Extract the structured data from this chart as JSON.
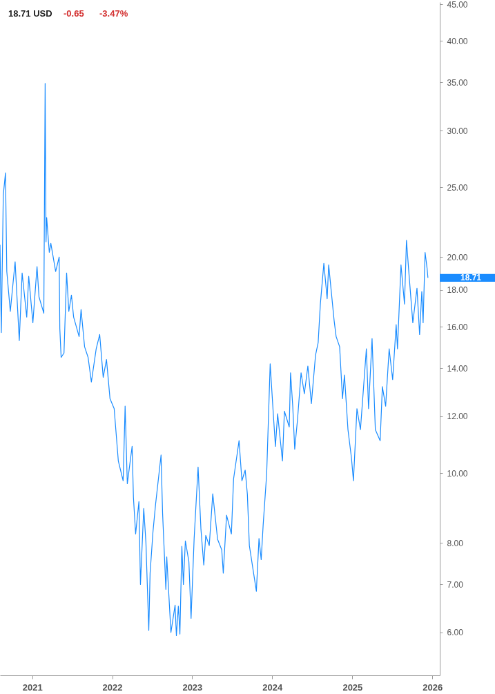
{
  "chart_data": {
    "type": "line",
    "title": "18.71 USD",
    "annotations": [
      "-0.65",
      "-3.47%",
      "18.71"
    ],
    "x": [
      "2020-08-07",
      "2020-08-13",
      "2020-08-22",
      "2020-09-01",
      "2020-09-07",
      "2020-09-23",
      "2020-10-15",
      "2020-11-03",
      "2020-11-16",
      "2020-12-07",
      "2020-12-16",
      "2021-01-04",
      "2021-01-23",
      "2021-02-01",
      "2021-02-23",
      "2021-03-01",
      "2021-03-05",
      "2021-03-08",
      "2021-03-20",
      "2021-03-27",
      "2021-04-18",
      "2021-05-04",
      "2021-05-07",
      "2021-05-13",
      "2021-05-26",
      "2021-06-07",
      "2021-06-17",
      "2021-06-29",
      "2021-07-09",
      "2021-08-03",
      "2021-08-12",
      "2021-08-28",
      "2021-09-13",
      "2021-09-28",
      "2021-10-20",
      "2021-11-05",
      "2021-11-21",
      "2021-12-06",
      "2021-12-22",
      "2022-01-10",
      "2022-01-29",
      "2022-02-20",
      "2022-03-01",
      "2022-03-11",
      "2022-04-02",
      "2022-04-08",
      "2022-04-18",
      "2022-05-03",
      "2022-05-10",
      "2022-05-25",
      "2022-06-04",
      "2022-06-17",
      "2022-06-23",
      "2022-07-06",
      "2022-07-18",
      "2022-08-12",
      "2022-08-19",
      "2022-09-03",
      "2022-09-07",
      "2022-09-26",
      "2022-10-15",
      "2022-10-21",
      "2022-10-30",
      "2022-11-06",
      "2022-11-15",
      "2022-11-22",
      "2022-12-01",
      "2022-12-17",
      "2022-12-27",
      "2023-01-10",
      "2023-01-28",
      "2023-02-10",
      "2023-02-23",
      "2023-03-04",
      "2023-03-20",
      "2023-04-05",
      "2023-04-27",
      "2023-05-16",
      "2023-05-23",
      "2023-06-07",
      "2023-06-29",
      "2023-07-09",
      "2023-08-03",
      "2023-08-16",
      "2023-08-31",
      "2023-09-10",
      "2023-09-19",
      "2023-10-05",
      "2023-10-21",
      "2023-11-02",
      "2023-11-12",
      "2023-11-21",
      "2023-12-07",
      "2023-12-23",
      "2024-01-07",
      "2024-01-16",
      "2024-01-26",
      "2024-02-17",
      "2024-02-26",
      "2024-03-19",
      "2024-03-25",
      "2024-04-04",
      "2024-04-13",
      "2024-04-26",
      "2024-05-12",
      "2024-05-27",
      "2024-06-12",
      "2024-06-28",
      "2024-07-17",
      "2024-07-29",
      "2024-08-08",
      "2024-08-24",
      "2024-09-08",
      "2024-09-15",
      "2024-10-10",
      "2024-10-19",
      "2024-11-04",
      "2024-11-17",
      "2024-11-26",
      "2024-12-12",
      "2024-12-28",
      "2025-01-06",
      "2025-01-22",
      "2025-02-07",
      "2025-03-06",
      "2025-03-16",
      "2025-04-01",
      "2025-04-16",
      "2025-05-08",
      "2025-05-18",
      "2025-06-02",
      "2025-06-18",
      "2025-07-04",
      "2025-07-20",
      "2025-07-26",
      "2025-08-11",
      "2025-08-27",
      "2025-09-05",
      "2025-09-15",
      "2025-10-04",
      "2025-10-23",
      "2025-11-04",
      "2025-11-14",
      "2025-11-20",
      "2025-11-29",
      "2025-12-08",
      "2025-12-12"
    ],
    "series": [
      {
        "color": "#1a8cff",
        "values": [
          20.8,
          15.7,
          24.4,
          26.2,
          19.1,
          16.8,
          19.7,
          15.3,
          19.0,
          16.5,
          18.8,
          16.2,
          19.4,
          17.6,
          16.7,
          34.9,
          21.0,
          22.7,
          20.3,
          20.9,
          19.1,
          20.0,
          15.9,
          14.5,
          14.7,
          19.0,
          16.8,
          17.7,
          16.5,
          15.5,
          16.9,
          15.0,
          14.5,
          13.4,
          14.9,
          15.6,
          13.6,
          14.4,
          12.7,
          12.3,
          10.4,
          9.76,
          12.4,
          9.67,
          10.9,
          9.25,
          8.23,
          9.13,
          7.0,
          8.93,
          8.0,
          6.04,
          7.26,
          8.28,
          9.05,
          10.6,
          8.8,
          6.89,
          7.65,
          6.0,
          6.55,
          5.94,
          6.53,
          5.97,
          7.91,
          7.0,
          8.05,
          7.53,
          6.28,
          8.11,
          10.2,
          8.36,
          7.45,
          8.19,
          7.93,
          9.36,
          8.09,
          7.82,
          7.26,
          8.74,
          8.23,
          9.82,
          11.1,
          9.76,
          10.1,
          9.34,
          7.93,
          7.37,
          6.85,
          8.11,
          7.58,
          8.47,
          9.98,
          14.2,
          12.0,
          10.9,
          12.1,
          10.4,
          12.2,
          11.6,
          13.8,
          12.4,
          10.8,
          11.9,
          13.8,
          12.9,
          14.1,
          12.5,
          14.6,
          15.2,
          17.2,
          19.6,
          17.5,
          19.5,
          16.3,
          15.5,
          15.0,
          12.7,
          13.7,
          11.5,
          10.5,
          9.76,
          12.3,
          11.5,
          14.9,
          12.3,
          15.4,
          11.5,
          11.1,
          13.2,
          12.4,
          14.9,
          13.5,
          16.1,
          14.9,
          19.5,
          17.2,
          21.1,
          19.2,
          16.2,
          18.1,
          15.6,
          17.9,
          16.2,
          20.3,
          19.3,
          18.71
        ]
      }
    ],
    "log": "y",
    "xlim": [
      "2020-08-07",
      "2026-02-04"
    ],
    "xticks": [
      {
        "value": "2021-01-01",
        "label": "2021"
      },
      {
        "value": "2022-01-01",
        "label": "2022"
      },
      {
        "value": "2023-01-01",
        "label": "2023"
      },
      {
        "value": "2024-01-01",
        "label": "2024"
      },
      {
        "value": "2025-01-01",
        "label": "2025"
      },
      {
        "value": "2026-01-01",
        "label": "2026"
      }
    ],
    "ylim": [
      5.23,
      45.3
    ],
    "yticks": [
      {
        "value": 6,
        "label": "6.00"
      },
      {
        "value": 7,
        "label": "7.00"
      },
      {
        "value": 8,
        "label": "8.00"
      },
      {
        "value": 10,
        "label": "10.00"
      },
      {
        "value": 12,
        "label": "12.00"
      },
      {
        "value": 14,
        "label": "14.00"
      },
      {
        "value": 16,
        "label": "16.00"
      },
      {
        "value": 18,
        "label": "18.00"
      },
      {
        "value": 20,
        "label": "20.00"
      },
      {
        "value": 25,
        "label": "25.00"
      },
      {
        "value": 30,
        "label": "30.00"
      },
      {
        "value": 35,
        "label": "35.00"
      },
      {
        "value": 40,
        "label": "40.00"
      },
      {
        "value": 45,
        "label": "45.00"
      }
    ],
    "grid": false,
    "marker": "none",
    "line_style": "solid"
  }
}
